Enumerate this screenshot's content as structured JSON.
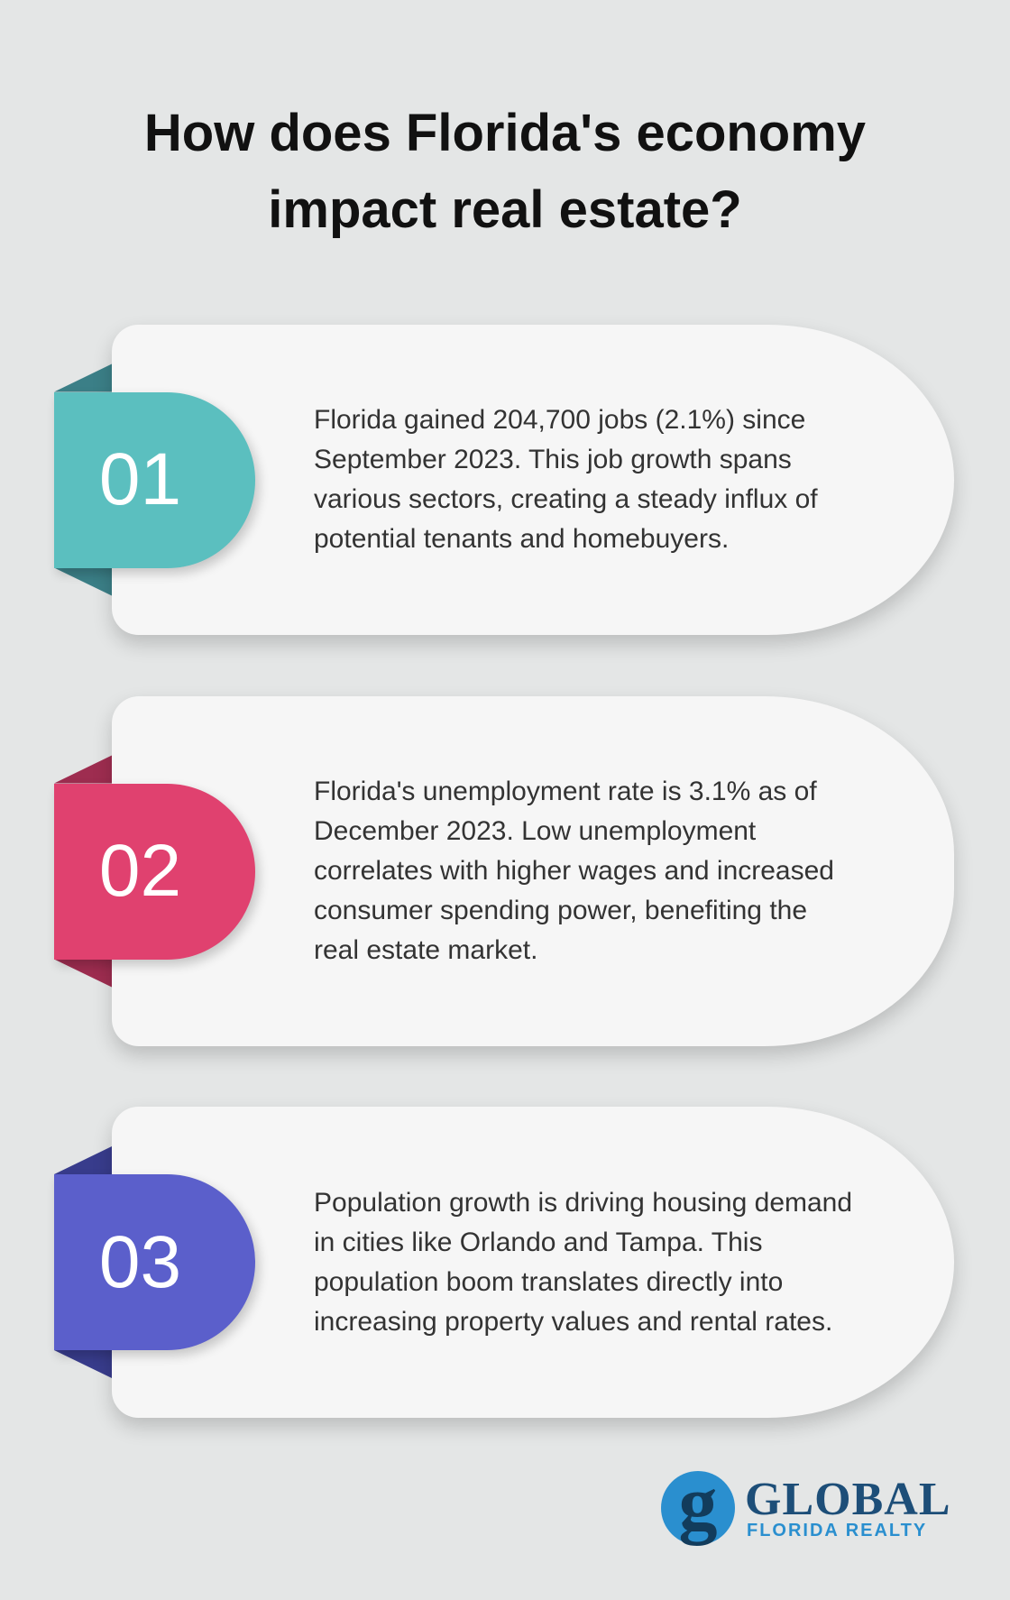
{
  "header": {
    "title": "How does Florida's economy impact real estate?"
  },
  "items": [
    {
      "number": "01",
      "text": "Florida gained 204,700 jobs (2.1%) since September 2023. This job growth spans various sectors, creating a steady influx of potential tenants and homebuyers."
    },
    {
      "number": "02",
      "text": "Florida's unemployment rate is 3.1% as of December 2023. Low unemployment correlates with higher wages and increased consumer spending power, benefiting the real estate market."
    },
    {
      "number": "03",
      "text": "Population growth is driving housing demand in cities like Orlando and Tampa. This population boom translates directly into increasing property values and rental rates."
    }
  ],
  "logo": {
    "mark": "g",
    "brand": "GLOBAL",
    "tagline": "FLORIDA REALTY"
  }
}
